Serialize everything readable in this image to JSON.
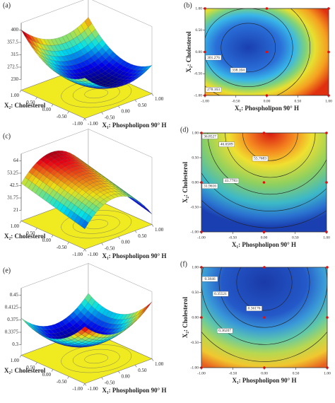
{
  "chart_data": [
    {
      "type": "surface",
      "panel": "(a)",
      "x_label": "X₁: Phospholipon 90° H",
      "y_label": "X₂: Cholesterol",
      "xlim": [
        -1,
        1
      ],
      "ylim": [
        -1,
        1
      ],
      "xticks": [
        {
          "value": -1,
          "label": "-1.00"
        },
        {
          "value": -0.5,
          "label": "-0.50"
        },
        {
          "value": 0,
          "label": "0.00"
        },
        {
          "value": 0.5,
          "label": "0.50"
        },
        {
          "value": 1,
          "label": "1.00"
        }
      ],
      "yticks": [
        {
          "value": -1,
          "label": "-1.00"
        },
        {
          "value": -0.5,
          "label": "-0.50"
        },
        {
          "value": 0,
          "label": "0.00"
        },
        {
          "value": 0.5,
          "label": "0.50"
        },
        {
          "value": 1,
          "label": "1.00"
        }
      ],
      "zlim": [
        230,
        400
      ],
      "zticks": [
        230,
        272.5,
        315,
        357.5,
        400
      ]
    },
    {
      "type": "contour",
      "panel": "(b)",
      "x_label": "X₁: Phospholipon 90° H",
      "y_label": "X₂: Cholesterol",
      "xlim": [
        -1,
        1
      ],
      "ylim": [
        -1,
        1
      ],
      "xticks": [
        {
          "value": -1,
          "label": "-1.00"
        },
        {
          "value": -0.5,
          "label": "-0.50"
        },
        {
          "value": 0,
          "label": "0.00"
        },
        {
          "value": 0.5,
          "label": "0.50"
        },
        {
          "value": 1,
          "label": "1.00"
        }
      ],
      "yticks": [
        {
          "value": -1,
          "label": "-1.00"
        },
        {
          "value": -0.5,
          "label": "-0.50"
        },
        {
          "value": 0,
          "label": "0.00"
        },
        {
          "value": 0.5,
          "label": "0.50"
        },
        {
          "value": 1,
          "label": "1.00"
        }
      ],
      "contour_levels": [
        338.104,
        301.276,
        278.163
      ]
    },
    {
      "type": "surface",
      "panel": "(c)",
      "x_label": "X₁: Phospholipon 90° H",
      "y_label": "X₂: Cholesterol",
      "xlim": [
        -1,
        1
      ],
      "ylim": [
        -1,
        1
      ],
      "xticks": [
        {
          "value": -1,
          "label": "-1.00"
        },
        {
          "value": -0.5,
          "label": "-0.50"
        },
        {
          "value": 0,
          "label": "0.00"
        },
        {
          "value": 0.5,
          "label": "0.50"
        },
        {
          "value": 1,
          "label": "1.00"
        }
      ],
      "yticks": [
        {
          "value": -1,
          "label": "-1.00"
        },
        {
          "value": -0.5,
          "label": "-0.50"
        },
        {
          "value": 0,
          "label": "0.00"
        },
        {
          "value": 0.5,
          "label": "0.50"
        },
        {
          "value": 1,
          "label": "1.00"
        }
      ],
      "zlim": [
        21,
        64
      ],
      "zticks": [
        21,
        31.75,
        42.5,
        53.25,
        64
      ]
    },
    {
      "type": "contour",
      "panel": "(d)",
      "x_label": "X₁: Phospholipon 90° H",
      "y_label": "X₂: Cholesterol",
      "xlim": [
        -1,
        1
      ],
      "ylim": [
        -1,
        1
      ],
      "xticks": [
        {
          "value": -1,
          "label": "-1.00"
        },
        {
          "value": -0.5,
          "label": "-0.50"
        },
        {
          "value": 0,
          "label": "0.00"
        },
        {
          "value": 0.5,
          "label": "0.50"
        },
        {
          "value": 1,
          "label": "1.00"
        }
      ],
      "yticks": [
        {
          "value": -1,
          "label": "-1.00"
        },
        {
          "value": -0.5,
          "label": "-0.50"
        },
        {
          "value": 0,
          "label": "0.00"
        },
        {
          "value": 0.5,
          "label": "0.50"
        },
        {
          "value": 1,
          "label": "1.00"
        }
      ],
      "contour_levels": [
        55.7683,
        46.6589,
        41.7783,
        36.8527,
        31.9616
      ]
    },
    {
      "type": "surface",
      "panel": "(e)",
      "x_label": "X₁: Phospholipon 90° H",
      "y_label": "X₂: Cholesterol",
      "xlim": [
        -1,
        1
      ],
      "ylim": [
        -1,
        1
      ],
      "xticks": [
        {
          "value": -1,
          "label": "-1.00"
        },
        {
          "value": -0.5,
          "label": "-0.50"
        },
        {
          "value": 0,
          "label": "0.00"
        },
        {
          "value": 0.5,
          "label": "0.50"
        },
        {
          "value": 1,
          "label": "1.00"
        }
      ],
      "yticks": [
        {
          "value": -1,
          "label": "-1.00"
        },
        {
          "value": -0.5,
          "label": "-0.50"
        },
        {
          "value": 0,
          "label": "0.00"
        },
        {
          "value": 0.5,
          "label": "0.50"
        },
        {
          "value": 1,
          "label": "1.00"
        }
      ],
      "zlim": [
        0.3,
        0.45
      ],
      "zticks": [
        0.3,
        0.3375,
        0.375,
        0.4125,
        0.45
      ]
    },
    {
      "type": "contour",
      "panel": "(f)",
      "x_label": "X₁: Phospholipon 90° H",
      "y_label": "X₂: Cholesterol",
      "xlim": [
        -1,
        1
      ],
      "ylim": [
        -1,
        1
      ],
      "xticks": [
        {
          "value": -1,
          "label": "-1.00"
        },
        {
          "value": -0.5,
          "label": "-0.50"
        },
        {
          "value": 0,
          "label": "0.00"
        },
        {
          "value": 0.5,
          "label": "0.50"
        },
        {
          "value": 1,
          "label": "1.00"
        }
      ],
      "yticks": [
        {
          "value": -1,
          "label": "-1.00"
        },
        {
          "value": -0.5,
          "label": "-0.50"
        },
        {
          "value": 0,
          "label": "0.00"
        },
        {
          "value": 0.5,
          "label": "0.50"
        },
        {
          "value": 1,
          "label": "1.00"
        }
      ],
      "contour_levels": [
        0.36176,
        0.35521,
        0.36207,
        0.3846
      ]
    }
  ]
}
